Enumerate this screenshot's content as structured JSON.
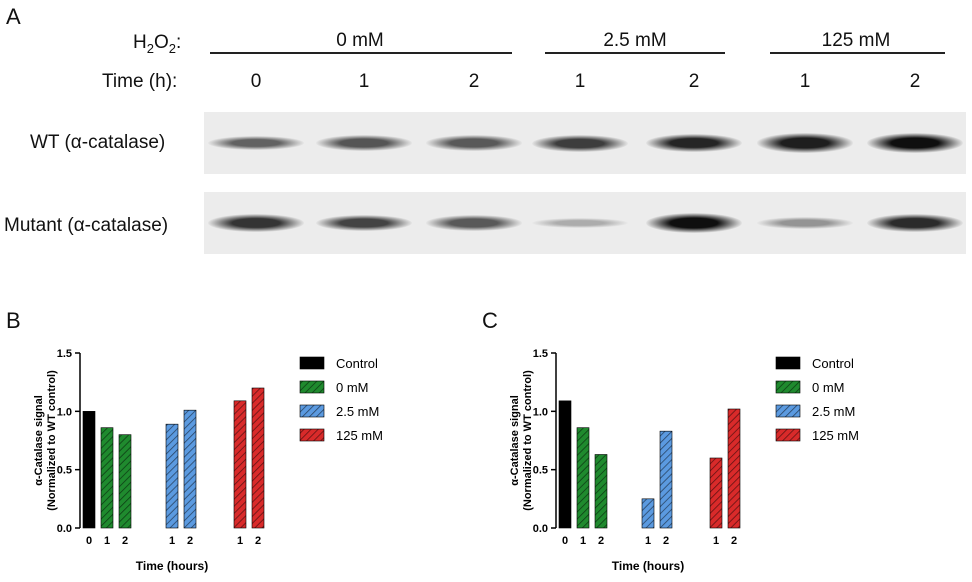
{
  "panelA": {
    "letter": "A",
    "h2o2_label": "H",
    "h2o2_sub": "2",
    "h2o2_o": "O",
    "h2o2_sub2": "2",
    "h2o2_colon": ":",
    "time_label": "Time  (h):",
    "groups": [
      {
        "label": "0 mM"
      },
      {
        "label": "2.5 mM"
      },
      {
        "label": "125 mM"
      }
    ],
    "lanes": [
      "0",
      "1",
      "2",
      "1",
      "2",
      "1",
      "2"
    ],
    "rows": [
      {
        "label": "WT (α-catalase)",
        "intensity": [
          0.55,
          0.62,
          0.6,
          0.75,
          0.88,
          0.92,
          1.0
        ]
      },
      {
        "label": "Mutant (α-catalase)",
        "intensity": [
          0.8,
          0.72,
          0.6,
          0.15,
          1.0,
          0.28,
          0.85
        ]
      }
    ]
  },
  "chart_data": [
    {
      "type": "bar",
      "panel": "B",
      "ylabel_line1": "α-Catalase signal",
      "ylabel_line2": "(Normalized to WT control)",
      "xlabel": "Time (hours)",
      "ylim": [
        0,
        1.5
      ],
      "yticks": [
        "0.0",
        "0.5",
        "1.0",
        "1.5"
      ],
      "legend": [
        "Control",
        "0 mM",
        "2.5 mM",
        "125 mM"
      ],
      "bars": [
        {
          "group": "Control",
          "x": "0",
          "value": 1.0
        },
        {
          "group": "0 mM",
          "x": "1",
          "value": 0.86
        },
        {
          "group": "0 mM",
          "x": "2",
          "value": 0.8
        },
        {
          "group": "2.5 mM",
          "x": "1",
          "value": 0.89
        },
        {
          "group": "2.5 mM",
          "x": "2",
          "value": 1.01
        },
        {
          "group": "125 mM",
          "x": "1",
          "value": 1.09
        },
        {
          "group": "125 mM",
          "x": "2",
          "value": 1.2
        }
      ]
    },
    {
      "type": "bar",
      "panel": "C",
      "ylabel_line1": "α-Catalase signal",
      "ylabel_line2": "(Normalized to WT control)",
      "xlabel": "Time (hours)",
      "ylim": [
        0,
        1.5
      ],
      "yticks": [
        "0.0",
        "0.5",
        "1.0",
        "1.5"
      ],
      "legend": [
        "Control",
        "0 mM",
        "2.5 mM",
        "125 mM"
      ],
      "bars": [
        {
          "group": "Control",
          "x": "0",
          "value": 1.09
        },
        {
          "group": "0 mM",
          "x": "1",
          "value": 0.86
        },
        {
          "group": "0 mM",
          "x": "2",
          "value": 0.63
        },
        {
          "group": "2.5 mM",
          "x": "1",
          "value": 0.25
        },
        {
          "group": "2.5 mM",
          "x": "2",
          "value": 0.83
        },
        {
          "group": "125 mM",
          "x": "1",
          "value": 0.6
        },
        {
          "group": "125 mM",
          "x": "2",
          "value": 1.02
        }
      ]
    }
  ],
  "colors": {
    "Control": "#000000",
    "0 mM": "#1f8a2e",
    "2.5 mM": "#5b9ae0",
    "125 mM": "#d92a2a"
  }
}
